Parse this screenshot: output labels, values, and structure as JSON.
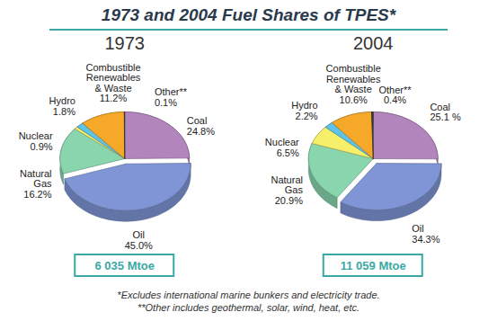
{
  "title": "1973 and 2004 Fuel Shares of TPES*",
  "notes": [
    "*Excludes international marine bunkers and electricity trade.",
    "**Other includes geothermal, solar, wind, heat, etc."
  ],
  "chart_data": [
    {
      "type": "pie",
      "title": "1973",
      "categories": [
        "Coal",
        "Oil",
        "Natural\nGas",
        "Nuclear",
        "Hydro",
        "Combustible\nRenewables\n& Waste",
        "Other**"
      ],
      "values": [
        24.8,
        45.0,
        16.2,
        0.9,
        1.8,
        11.2,
        0.1
      ],
      "value_labels": [
        "24.8%",
        "45.0%",
        "16.2%",
        "0.9%",
        "1.8%",
        "11.2%",
        "0.1%"
      ],
      "colors": [
        "#b286bd",
        "#7f95d6",
        "#88d5ae",
        "#f5ef6a",
        "#5fc3e8",
        "#f6a928",
        "#3c3c3c"
      ],
      "data_labels": true,
      "total": "6 035 Mtoe"
    },
    {
      "type": "pie",
      "title": "2004",
      "categories": [
        "Coal",
        "Oil",
        "Natural\nGas",
        "Nuclear",
        "Hydro",
        "Combustible\nRenewables\n& Waste",
        "Other**"
      ],
      "values": [
        25.1,
        34.3,
        20.9,
        6.5,
        2.2,
        10.6,
        0.4
      ],
      "value_labels": [
        "25.1 %",
        "34.3%",
        "20.9%",
        "6.5%",
        "2.2%",
        "10.6%",
        "0.4%"
      ],
      "colors": [
        "#b286bd",
        "#7f95d6",
        "#88d5ae",
        "#f5ef6a",
        "#5fc3e8",
        "#f6a928",
        "#3c3c3c"
      ],
      "data_labels": true,
      "total": "11 059 Mtoe"
    }
  ]
}
